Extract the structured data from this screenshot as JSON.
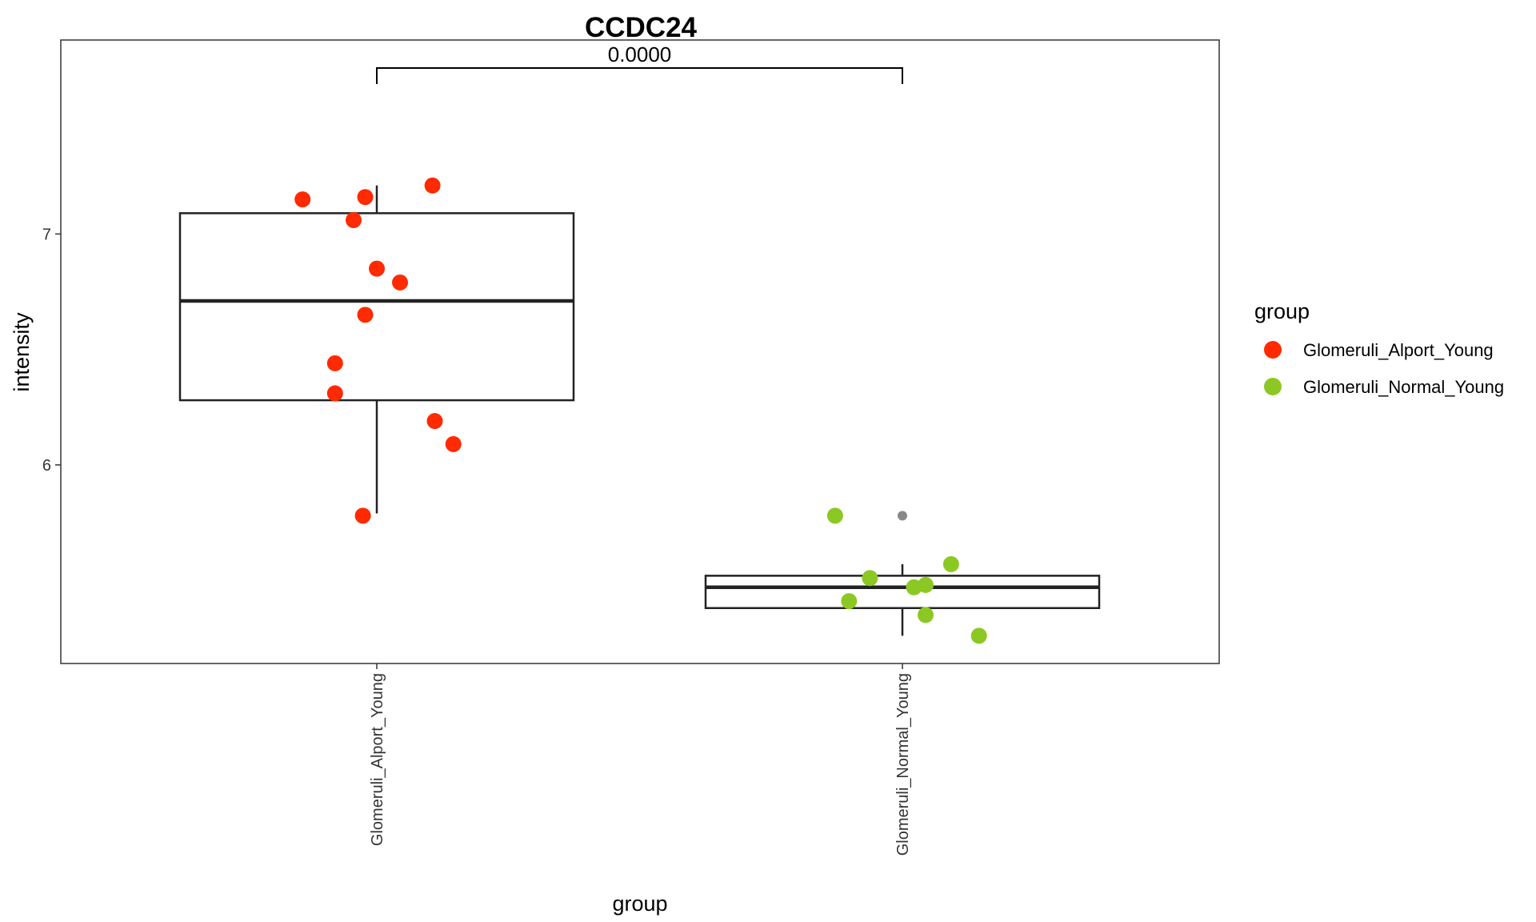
{
  "chart_data": {
    "type": "box",
    "title": "CCDC24",
    "xlabel": "group",
    "ylabel": "intensity",
    "ylim": [
      5.14,
      7.84
    ],
    "yticks": [
      6,
      7
    ],
    "categories": [
      "Glomeruli_Alport_Young",
      "Glomeruli_Normal_Young"
    ],
    "legend": {
      "title": "group",
      "position": "right",
      "entries": [
        {
          "label": "Glomeruli_Alport_Young",
          "color": "#FF2A00"
        },
        {
          "label": "Glomeruli_Normal_Young",
          "color": "#8CC823"
        }
      ]
    },
    "boxes": [
      {
        "category": "Glomeruli_Alport_Young",
        "q1": 6.28,
        "median": 6.71,
        "q3": 7.09,
        "whisker_low": 5.79,
        "whisker_high": 7.21,
        "outliers": []
      },
      {
        "category": "Glomeruli_Normal_Young",
        "q1": 5.38,
        "median": 5.47,
        "q3": 5.52,
        "whisker_low": 5.26,
        "whisker_high": 5.57,
        "outliers": [
          5.78
        ]
      }
    ],
    "series": [
      {
        "category": "Glomeruli_Alport_Young",
        "color": "#FF2A00",
        "points": [
          {
            "jitter": -0.32,
            "value": 7.15
          },
          {
            "jitter": -0.05,
            "value": 7.16
          },
          {
            "jitter": 0.24,
            "value": 7.21
          },
          {
            "jitter": -0.1,
            "value": 7.06
          },
          {
            "jitter": 0.0,
            "value": 6.85
          },
          {
            "jitter": 0.1,
            "value": 6.79
          },
          {
            "jitter": -0.05,
            "value": 6.65
          },
          {
            "jitter": -0.18,
            "value": 6.44
          },
          {
            "jitter": -0.18,
            "value": 6.31
          },
          {
            "jitter": 0.25,
            "value": 6.19
          },
          {
            "jitter": 0.33,
            "value": 6.09
          },
          {
            "jitter": -0.06,
            "value": 5.78
          }
        ]
      },
      {
        "category": "Glomeruli_Normal_Young",
        "color": "#8CC823",
        "points": [
          {
            "jitter": -0.29,
            "value": 5.78
          },
          {
            "jitter": 0.21,
            "value": 5.57
          },
          {
            "jitter": -0.14,
            "value": 5.51
          },
          {
            "jitter": 0.05,
            "value": 5.47
          },
          {
            "jitter": 0.1,
            "value": 5.48
          },
          {
            "jitter": -0.23,
            "value": 5.41
          },
          {
            "jitter": 0.1,
            "value": 5.35
          },
          {
            "jitter": 0.33,
            "value": 5.26
          }
        ]
      }
    ],
    "annotation": {
      "text": "0.0000",
      "from": "Glomeruli_Alport_Young",
      "to": "Glomeruli_Normal_Young"
    }
  }
}
